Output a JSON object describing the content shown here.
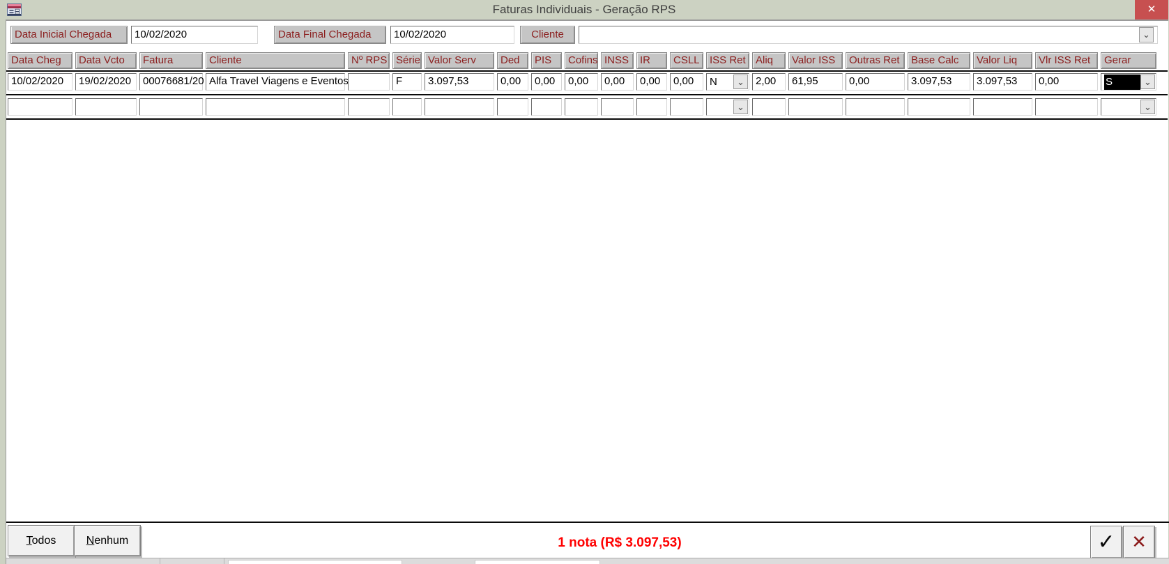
{
  "window": {
    "title": "Faturas Individuais - Geração RPS",
    "close_glyph": "✕"
  },
  "filters": {
    "data_inicial_label": "Data Inicial Chegada",
    "data_inicial_value": "10/02/2020",
    "data_final_label": "Data Final Chegada",
    "data_final_value": "10/02/2020",
    "cliente_label": "Cliente",
    "cliente_value": ""
  },
  "grid": {
    "columns": [
      {
        "key": "data_cheg",
        "label": "Data Cheg",
        "type": "text"
      },
      {
        "key": "data_vcto",
        "label": "Data Vcto",
        "type": "text"
      },
      {
        "key": "fatura",
        "label": "Fatura",
        "type": "text"
      },
      {
        "key": "cliente",
        "label": "Cliente",
        "type": "text"
      },
      {
        "key": "n_rps",
        "label": "Nº RPS",
        "type": "text"
      },
      {
        "key": "serie",
        "label": "Série",
        "type": "text"
      },
      {
        "key": "valor_serv",
        "label": "Valor Serv",
        "type": "text"
      },
      {
        "key": "ded",
        "label": "Ded",
        "type": "text"
      },
      {
        "key": "pis",
        "label": "PIS",
        "type": "text"
      },
      {
        "key": "cofins",
        "label": "Cofins",
        "type": "text"
      },
      {
        "key": "inss",
        "label": "INSS",
        "type": "text"
      },
      {
        "key": "ir",
        "label": "IR",
        "type": "text"
      },
      {
        "key": "csll",
        "label": "CSLL",
        "type": "text"
      },
      {
        "key": "iss_ret",
        "label": "ISS Ret",
        "type": "combo"
      },
      {
        "key": "aliq",
        "label": "Aliq",
        "type": "text"
      },
      {
        "key": "valor_iss",
        "label": "Valor ISS",
        "type": "text"
      },
      {
        "key": "outras_ret",
        "label": "Outras Ret",
        "type": "text"
      },
      {
        "key": "base_calc",
        "label": "Base Calc",
        "type": "text"
      },
      {
        "key": "valor_liq",
        "label": "Valor Liq",
        "type": "text"
      },
      {
        "key": "vlr_iss_ret",
        "label": "Vlr ISS Ret",
        "type": "text"
      },
      {
        "key": "gerar",
        "label": "Gerar",
        "type": "combo"
      }
    ],
    "rows": [
      {
        "data_cheg": "10/02/2020",
        "data_vcto": "19/02/2020",
        "fatura": "00076681/20",
        "cliente": "Alfa Travel Viagens e Eventos",
        "n_rps": "",
        "serie": "F",
        "valor_serv": "3.097,53",
        "ded": "0,00",
        "pis": "0,00",
        "cofins": "0,00",
        "inss": "0,00",
        "ir": "0,00",
        "csll": "0,00",
        "iss_ret": "N",
        "aliq": "2,00",
        "valor_iss": "61,95",
        "outras_ret": "0,00",
        "base_calc": "3.097,53",
        "valor_liq": "3.097,53",
        "vlr_iss_ret": "0,00",
        "gerar": "S",
        "highlight": "gerar"
      },
      {
        "data_cheg": "",
        "data_vcto": "",
        "fatura": "",
        "cliente": "",
        "n_rps": "",
        "serie": "",
        "valor_serv": "",
        "ded": "",
        "pis": "",
        "cofins": "",
        "inss": "",
        "ir": "",
        "csll": "",
        "iss_ret": "",
        "aliq": "",
        "valor_iss": "",
        "outras_ret": "",
        "base_calc": "",
        "valor_liq": "",
        "vlr_iss_ret": "",
        "gerar": ""
      }
    ]
  },
  "footer": {
    "todos_label": "Todos",
    "nenhum_label": "Nenhum",
    "summary": "1 nota (R$ 3.097,53)",
    "confirm_glyph": "✓",
    "cancel_glyph": "✕"
  },
  "colors": {
    "window_frame": "#ccd2c2",
    "close_button": "#c75050",
    "label_text": "#8b1e1e",
    "label_bg": "#c5c5c5",
    "summary_text": "#ff0000",
    "highlight_bg": "#000000"
  }
}
